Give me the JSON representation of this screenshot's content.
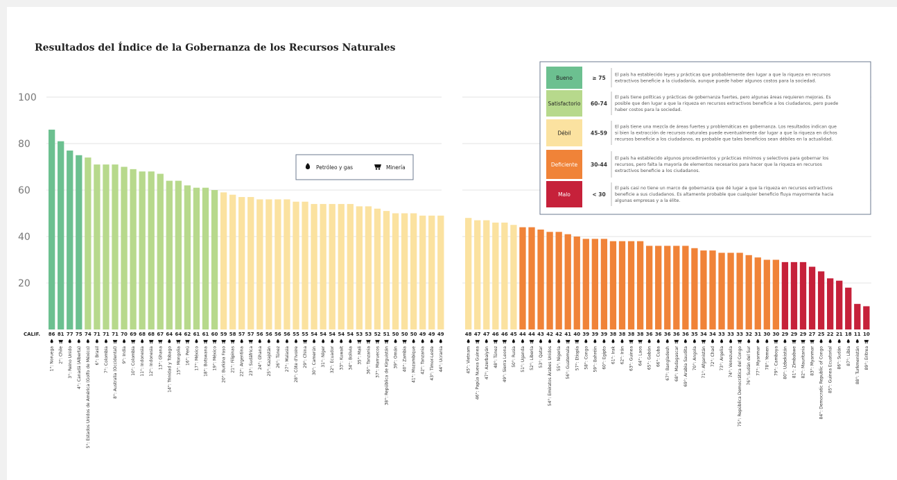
{
  "chart_data": {
    "type": "bar",
    "title": "Resultados del Índice de la Gobernanza de los Recursos Naturales",
    "ylim": [
      0,
      100
    ],
    "yticks": [
      "20",
      "40",
      "60",
      "80",
      "100"
    ],
    "calif_label": "CALIF.",
    "grid": true,
    "colors": {
      "Bueno": "#6cc090",
      "Satisfactorio": "#b7d98c",
      "Débil": "#fbe2a0",
      "Deficiente": "#f08338",
      "Malo": "#c6213a"
    },
    "groups": [
      {
        "bars": [
          {
            "label": "1°: Noruega",
            "value": 86,
            "sector": "oil"
          },
          {
            "label": "2°: Chile",
            "value": 81,
            "sector": "mining"
          },
          {
            "label": "3°: Reino Unido",
            "value": 77,
            "sector": "oil"
          },
          {
            "label": "4°: Canadá (Alberta)",
            "value": 75,
            "sector": "oil"
          },
          {
            "label": "5°: Estados Unidos de América (Golfo de México)",
            "value": 74,
            "sector": "oil"
          },
          {
            "label": "6°: Brasil",
            "value": 71,
            "sector": "oil"
          },
          {
            "label": "7°: Colombia",
            "value": 71,
            "sector": "oil"
          },
          {
            "label": "8°: Australia (Occidental)",
            "value": 71,
            "sector": "mining"
          },
          {
            "label": "9°: India",
            "value": 70,
            "sector": "oil"
          },
          {
            "label": "10°: Colombia",
            "value": 69,
            "sector": "mining"
          },
          {
            "label": "11°: Indonesia",
            "value": 68,
            "sector": "oil"
          },
          {
            "label": "12°: Indonesia",
            "value": 68,
            "sector": "mining"
          },
          {
            "label": "13°: Ghana",
            "value": 67,
            "sector": "mining"
          },
          {
            "label": "14°: Trinidad y Tobago",
            "value": 64,
            "sector": "oil"
          },
          {
            "label": "15°: Mongolia",
            "value": 64,
            "sector": "mining"
          },
          {
            "label": "16°: Perú",
            "value": 62,
            "sector": "mining"
          },
          {
            "label": "17°: México",
            "value": 61,
            "sector": "oil"
          },
          {
            "label": "18°: Botswana",
            "value": 61,
            "sector": "mining"
          },
          {
            "label": "19°: México",
            "value": 60,
            "sector": "mining"
          },
          {
            "label": "20°: Burkina Faso",
            "value": 59,
            "sector": "mining"
          },
          {
            "label": "21°: Filipinas",
            "value": 58,
            "sector": "mining"
          },
          {
            "label": "22°: Argentina",
            "value": 57,
            "sector": "oil"
          },
          {
            "label": "23°: Sudáfrica",
            "value": 57,
            "sector": "mining"
          },
          {
            "label": "24°: Ghana",
            "value": 56,
            "sector": "oil"
          },
          {
            "label": "25°: Kazajstán",
            "value": 56,
            "sector": "oil"
          },
          {
            "label": "26°: Túnez",
            "value": 56,
            "sector": "oil"
          },
          {
            "label": "27°: Malasia",
            "value": 56,
            "sector": "oil"
          },
          {
            "label": "28°: Côte d'Ivoire",
            "value": 55,
            "sector": "oil"
          },
          {
            "label": "29°: China",
            "value": 55,
            "sector": "mining"
          },
          {
            "label": "30°: Camerún",
            "value": 54,
            "sector": "oil"
          },
          {
            "label": "31°: Níger",
            "value": 54,
            "sector": "oil"
          },
          {
            "label": "32°: Ecuador",
            "value": 54,
            "sector": "oil"
          },
          {
            "label": "33°: Kuwait",
            "value": 54,
            "sector": "oil"
          },
          {
            "label": "34°: Bolivia",
            "value": 54,
            "sector": "oil"
          },
          {
            "label": "35°: Mali",
            "value": 53,
            "sector": "mining"
          },
          {
            "label": "36°: Tanzania",
            "value": 53,
            "sector": "mining"
          },
          {
            "label": "37°: Marruecos",
            "value": 52,
            "sector": "mining"
          },
          {
            "label": "38°: República de Kirguistán",
            "value": 51,
            "sector": "mining"
          },
          {
            "label": "39°: Omán",
            "value": 50,
            "sector": "oil"
          },
          {
            "label": "40°: Zambia",
            "value": 50,
            "sector": "mining"
          },
          {
            "label": "41°: Mozambique",
            "value": 50,
            "sector": "oil"
          },
          {
            "label": "42°: Tanzania",
            "value": 49,
            "sector": "oil"
          },
          {
            "label": "43°: Timor-Leste",
            "value": 49,
            "sector": "oil"
          },
          {
            "label": "44°: Ucrania",
            "value": 49,
            "sector": "oil"
          }
        ]
      },
      {
        "bars": [
          {
            "label": "45°: Vietnam",
            "value": 48,
            "sector": "oil"
          },
          {
            "label": "46°: Papúa Nueva Guinea",
            "value": 47,
            "sector": "mining"
          },
          {
            "label": "47°: Azerbaiyán",
            "value": 47,
            "sector": "oil"
          },
          {
            "label": "48°: Túnez",
            "value": 46,
            "sector": "mining"
          },
          {
            "label": "49°: Sierra Leona",
            "value": 46,
            "sector": "mining"
          },
          {
            "label": "50°: Rusia",
            "value": 45,
            "sector": "oil"
          },
          {
            "label": "51°: Uganda",
            "value": 44,
            "sector": "oil"
          },
          {
            "label": "52°: Liberia",
            "value": 44,
            "sector": "mining"
          },
          {
            "label": "53°: Qatar",
            "value": 43,
            "sector": "oil"
          },
          {
            "label": "54°: Emiratos Árabes Unidos",
            "value": 42,
            "sector": "oil"
          },
          {
            "label": "55°: Nigeria",
            "value": 42,
            "sector": "oil"
          },
          {
            "label": "56°: Guatemala",
            "value": 41,
            "sector": "mining"
          },
          {
            "label": "57°: Etiopía",
            "value": 40,
            "sector": "mining"
          },
          {
            "label": "58°: Congo",
            "value": 39,
            "sector": "oil"
          },
          {
            "label": "59°: Bahréin",
            "value": 39,
            "sector": "oil"
          },
          {
            "label": "60°: Egipto",
            "value": 39,
            "sector": "oil"
          },
          {
            "label": "61°: Irak",
            "value": 38,
            "sector": "oil"
          },
          {
            "label": "62°: Irán",
            "value": 38,
            "sector": "oil"
          },
          {
            "label": "63°: Guinea",
            "value": 38,
            "sector": "mining"
          },
          {
            "label": "64°: Laos",
            "value": 38,
            "sector": "mining"
          },
          {
            "label": "65°: Gabón",
            "value": 36,
            "sector": "oil"
          },
          {
            "label": "66°: Cuba",
            "value": 36,
            "sector": "oil"
          },
          {
            "label": "67°: Bangladesh",
            "value": 36,
            "sector": "oil"
          },
          {
            "label": "68°: Madagascar",
            "value": 36,
            "sector": "mining"
          },
          {
            "label": "69°: Arabia Saudita",
            "value": 36,
            "sector": "oil"
          },
          {
            "label": "70°: Angola",
            "value": 35,
            "sector": "oil"
          },
          {
            "label": "71°: Afganistán",
            "value": 34,
            "sector": "mining"
          },
          {
            "label": "72°: Chad",
            "value": 34,
            "sector": "oil"
          },
          {
            "label": "73°: Argelia",
            "value": 33,
            "sector": "oil"
          },
          {
            "label": "74°: Venezuela",
            "value": 33,
            "sector": "oil"
          },
          {
            "label": "75°: República Democrática del Congo",
            "value": 33,
            "sector": "mining"
          },
          {
            "label": "76°: Sudán del Sur",
            "value": 32,
            "sector": "oil"
          },
          {
            "label": "77°: Myanmar",
            "value": 31,
            "sector": "oil"
          },
          {
            "label": "78°: Yemen",
            "value": 30,
            "sector": "oil"
          },
          {
            "label": "79°: Camboya",
            "value": 30,
            "sector": "mining"
          },
          {
            "label": "80°: Uzbekistán",
            "value": 29,
            "sector": "oil"
          },
          {
            "label": "81°: Zimbabwe",
            "value": 29,
            "sector": "mining"
          },
          {
            "label": "82°: Mauritania",
            "value": 29,
            "sector": "mining"
          },
          {
            "label": "83°: Myanmar",
            "value": 27,
            "sector": "mining"
          },
          {
            "label": "84°: Democratic Republic of Congo",
            "value": 25,
            "sector": "oil"
          },
          {
            "label": "85°: Guinea Ecuatorial",
            "value": 22,
            "sector": "oil"
          },
          {
            "label": "86°: Sudán",
            "value": 21,
            "sector": "oil"
          },
          {
            "label": "87°: Libia",
            "value": 18,
            "sector": "oil"
          },
          {
            "label": "88°: Turkmenistán",
            "value": 11,
            "sector": "oil"
          },
          {
            "label": "89°: Eritrea",
            "value": 10,
            "sector": "mining"
          }
        ]
      }
    ],
    "sector_legend": [
      {
        "key": "oil",
        "label": "Petróleo y gas",
        "icon": "oil-drop-icon"
      },
      {
        "key": "mining",
        "label": "Minería",
        "icon": "mining-cart-icon"
      }
    ],
    "legend": [
      {
        "label": "Bueno",
        "range": "≥ 75",
        "color": "#6cc090",
        "lines": [
          "El país ha establecido leyes y prácticas que probablemente den lugar a que la riqueza en recursos",
          "extractivos beneficie a la ciudadanía, aunque puede haber algunos costos para la sociedad."
        ]
      },
      {
        "label": "Satisfactorio",
        "range": "60-74",
        "color": "#b7d98c",
        "lines": [
          "El país tiene políticas y prácticas de gobernanza fuertes, pero algunas áreas requieren mejoras. Es",
          "posible que den lugar a que la riqueza en recursos extractivos beneficie a los ciudadanos, pero puede",
          "haber costos para la sociedad."
        ]
      },
      {
        "label": "Débil",
        "range": "45-59",
        "color": "#fbe2a0",
        "lines": [
          "El país tiene una mezcla de áreas fuertes y problemáticas en gobernanza. Los resultados indican que",
          "si bien la extracción de recursos naturales puede eventualmente dar lugar  a que la riqueza en dichos",
          "recursos beneficie a los ciudadanos, es probable que tales beneficios sean débiles en la actualidad."
        ]
      },
      {
        "label": "Deficiente",
        "range": "30-44",
        "color": "#f08338",
        "lines": [
          "El país ha establecido algunos procedimientos y prácticas mínimos y selectivos para gobernar los",
          "recursos, pero falta la mayoría de elementos necesarios para  hacer que la riqueza en recursos",
          "extractivos beneficie a los ciudadanos."
        ]
      },
      {
        "label": "Malo",
        "range": "< 30",
        "color": "#c6213a",
        "lines": [
          "El país casi no tiene un marco de gobernanza que dé lugar a que la riqueza en recursos extractivos",
          "beneficie a sus ciudadanos. Es altamente probable que cualquier beneficio fluya mayormente hacia",
          "algunas empresas y a la élite."
        ]
      }
    ]
  }
}
